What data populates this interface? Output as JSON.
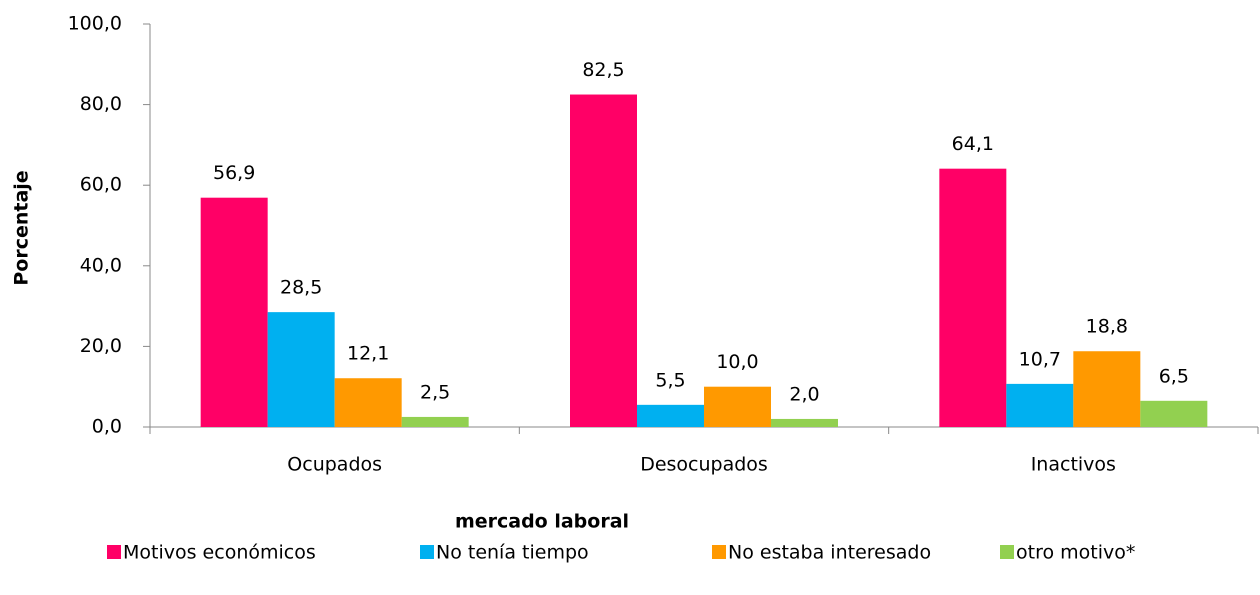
{
  "chart_data": {
    "type": "bar",
    "x_label": "mercado laboral",
    "y_label": "Porcentaje",
    "categories": [
      "Ocupados",
      "Desocupados",
      "Inactivos"
    ],
    "series": [
      {
        "name": "Motivos económicos",
        "color": "#ff0066",
        "values": [
          56.9,
          82.5,
          64.1
        ],
        "value_labels": [
          "56,9",
          "82,5",
          "64,1"
        ]
      },
      {
        "name": "No tenía tiempo",
        "color": "#00b0f0",
        "values": [
          28.5,
          5.5,
          10.7
        ],
        "value_labels": [
          "28,5",
          "5,5",
          "10,7"
        ]
      },
      {
        "name": "No estaba interesado",
        "color": "#ff9900",
        "values": [
          12.1,
          10.0,
          18.8
        ],
        "value_labels": [
          "12,1",
          "10,0",
          "18,8"
        ]
      },
      {
        "name": "otro motivo*",
        "color": "#92d050",
        "values": [
          2.5,
          2.0,
          6.5
        ],
        "value_labels": [
          "2,5",
          "2,0",
          "6,5"
        ]
      }
    ],
    "ylim": [
      0,
      100
    ],
    "yticks": [
      {
        "value": 0,
        "label": "0,0"
      },
      {
        "value": 20,
        "label": "20,0"
      },
      {
        "value": 40,
        "label": "40,0"
      },
      {
        "value": 60,
        "label": "60,0"
      },
      {
        "value": 80,
        "label": "80,0"
      },
      {
        "value": 100,
        "label": "100,0"
      }
    ],
    "grid": false,
    "legend": "bottom"
  }
}
